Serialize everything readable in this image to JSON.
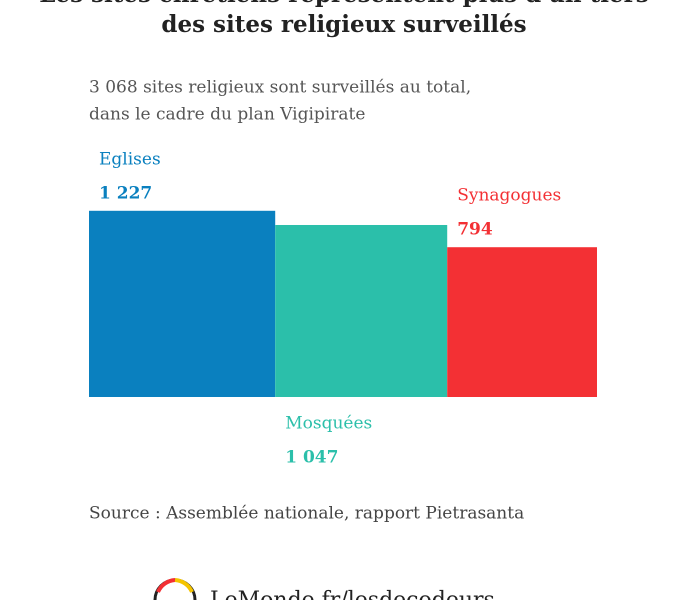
{
  "chart_data": {
    "type": "bar",
    "title": [
      "Les sites chrétiens représentent plus d'un tiers",
      "des sites religieux surveillés"
    ],
    "subtitle": [
      "3 068 sites religieux sont surveillés au total,",
      "dans le cadre du plan Vigipirate"
    ],
    "categories": [
      "Eglises",
      "Mosquées",
      "Synagogues"
    ],
    "values": [
      1227,
      1047,
      794
    ],
    "value_labels": [
      "1 227",
      "1 047",
      "794"
    ],
    "colors": [
      "#0a80bf",
      "#2bbfaa",
      "#f33034"
    ],
    "source": "Source : Assemblée nationale, rapport Pietrasanta"
  },
  "footer": "LeMonde.fr/lesdecodeurs"
}
